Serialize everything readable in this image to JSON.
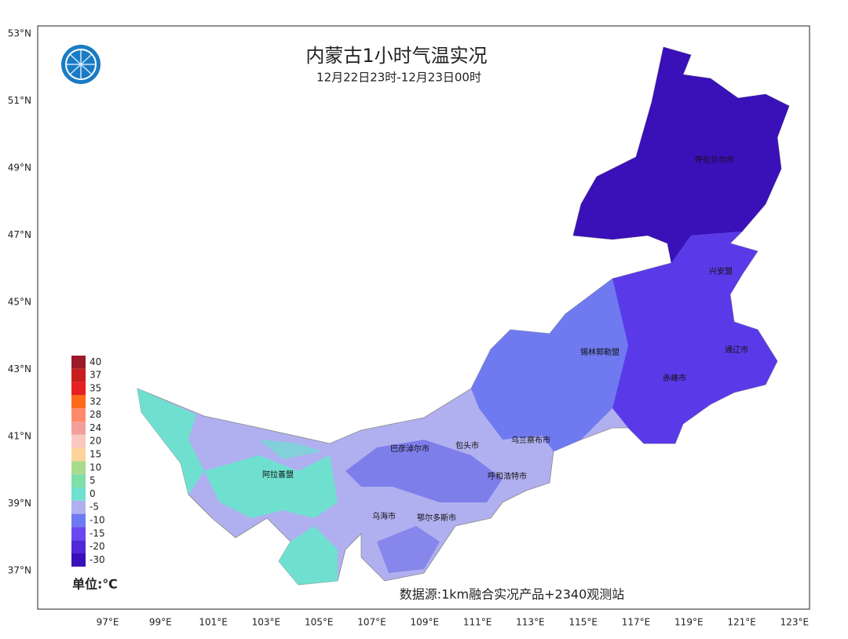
{
  "title": "内蒙古1小时气温实况",
  "subtitle": "12月22日23时-12月23日00时",
  "lat_ticks": [
    "53°N",
    "51°N",
    "49°N",
    "47°N",
    "45°N",
    "43°N",
    "41°N",
    "39°N",
    "37°N"
  ],
  "lon_ticks": [
    "97°E",
    "99°E",
    "101°E",
    "103°E",
    "105°E",
    "107°E",
    "109°E",
    "111°E",
    "113°E",
    "115°E",
    "117°E",
    "119°E",
    "121°E",
    "123°E"
  ],
  "legend": {
    "unit": "单位:℃",
    "levels": [
      {
        "label": "40",
        "color": "#9b1a2a"
      },
      {
        "label": "37",
        "color": "#c81e1e"
      },
      {
        "label": "35",
        "color": "#e62020"
      },
      {
        "label": "32",
        "color": "#ff6a1a"
      },
      {
        "label": "28",
        "color": "#ff8a6a"
      },
      {
        "label": "24",
        "color": "#f4a09a"
      },
      {
        "label": "20",
        "color": "#f9c8c0"
      },
      {
        "label": "15",
        "color": "#fcd49a"
      },
      {
        "label": "10",
        "color": "#a8dc8c"
      },
      {
        "label": "5",
        "color": "#7ee0a8"
      },
      {
        "label": "0",
        "color": "#6fe0d0"
      },
      {
        "label": "-5",
        "color": "#b0b0f0"
      },
      {
        "label": "-10",
        "color": "#6f7af0"
      },
      {
        "label": "-15",
        "color": "#6a48f0"
      },
      {
        "label": "-20",
        "color": "#5028d8"
      },
      {
        "label": "-30",
        "color": "#3a10b8"
      }
    ]
  },
  "cities": [
    "呼伦贝尔市",
    "兴安盟",
    "通辽市",
    "锡林郭勒盟",
    "赤峰市",
    "乌兰察布市",
    "包头市",
    "巴彦淖尔市",
    "呼和浩特市",
    "阿拉善盟",
    "乌海市",
    "鄂尔多斯市"
  ],
  "source": "数据源:1km融合实况产品+2340观测站"
}
